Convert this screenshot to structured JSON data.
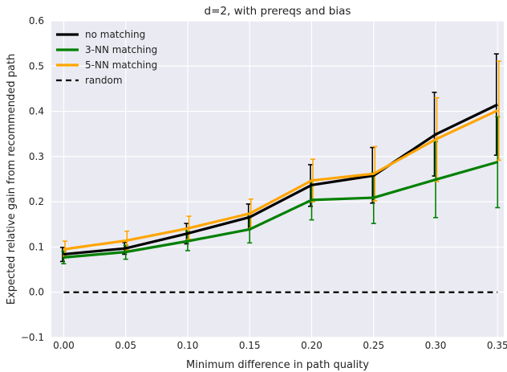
{
  "chart_data": {
    "type": "line",
    "title": "d=2, with prereqs and bias",
    "xlabel": "Minimum difference in path quality",
    "ylabel": "Expected relative gain from recommended path",
    "xlim": [
      -0.01,
      0.355
    ],
    "ylim": [
      -0.1,
      0.6
    ],
    "x": [
      0.0,
      0.05,
      0.1,
      0.15,
      0.2,
      0.25,
      0.3,
      0.35
    ],
    "xticks": [
      "0.00",
      "0.05",
      "0.10",
      "0.15",
      "0.20",
      "0.25",
      "0.30",
      "0.35"
    ],
    "yticks": [
      "−0.1",
      "0.0",
      "0.1",
      "0.2",
      "0.3",
      "0.4",
      "0.5",
      "0.6"
    ],
    "ytick_values": [
      -0.1,
      0.0,
      0.1,
      0.2,
      0.3,
      0.4,
      0.5,
      0.6
    ],
    "grid": true,
    "legend_position": "top-left",
    "series": [
      {
        "name": "no matching",
        "color": "#000000",
        "style": "solid",
        "values": [
          0.084,
          0.097,
          0.13,
          0.166,
          0.237,
          0.258,
          0.349,
          0.415
        ],
        "err_low": [
          0.068,
          0.084,
          0.107,
          0.138,
          0.19,
          0.197,
          0.257,
          0.303
        ],
        "err_high": [
          0.099,
          0.11,
          0.152,
          0.195,
          0.282,
          0.32,
          0.442,
          0.527
        ]
      },
      {
        "name": "3-NN matching",
        "color": "#008000",
        "style": "solid",
        "values": [
          0.077,
          0.089,
          0.113,
          0.139,
          0.204,
          0.209,
          0.249,
          0.288
        ],
        "err_low": [
          0.063,
          0.073,
          0.092,
          0.109,
          0.16,
          0.152,
          0.165,
          0.187
        ],
        "err_high": [
          0.091,
          0.104,
          0.135,
          0.168,
          0.247,
          0.264,
          0.333,
          0.388
        ]
      },
      {
        "name": "5-NN matching",
        "color": "#FFA500",
        "style": "solid",
        "values": [
          0.095,
          0.114,
          0.141,
          0.174,
          0.247,
          0.262,
          0.338,
          0.402
        ],
        "err_low": [
          0.08,
          0.094,
          0.117,
          0.142,
          0.2,
          0.202,
          0.245,
          0.292
        ],
        "err_high": [
          0.113,
          0.135,
          0.168,
          0.206,
          0.294,
          0.322,
          0.43,
          0.511
        ]
      },
      {
        "name": "random",
        "color": "#000000",
        "style": "dashed",
        "values": [
          0.0,
          0.0,
          0.0,
          0.0,
          0.0,
          0.0,
          0.0,
          0.0
        ]
      }
    ]
  }
}
